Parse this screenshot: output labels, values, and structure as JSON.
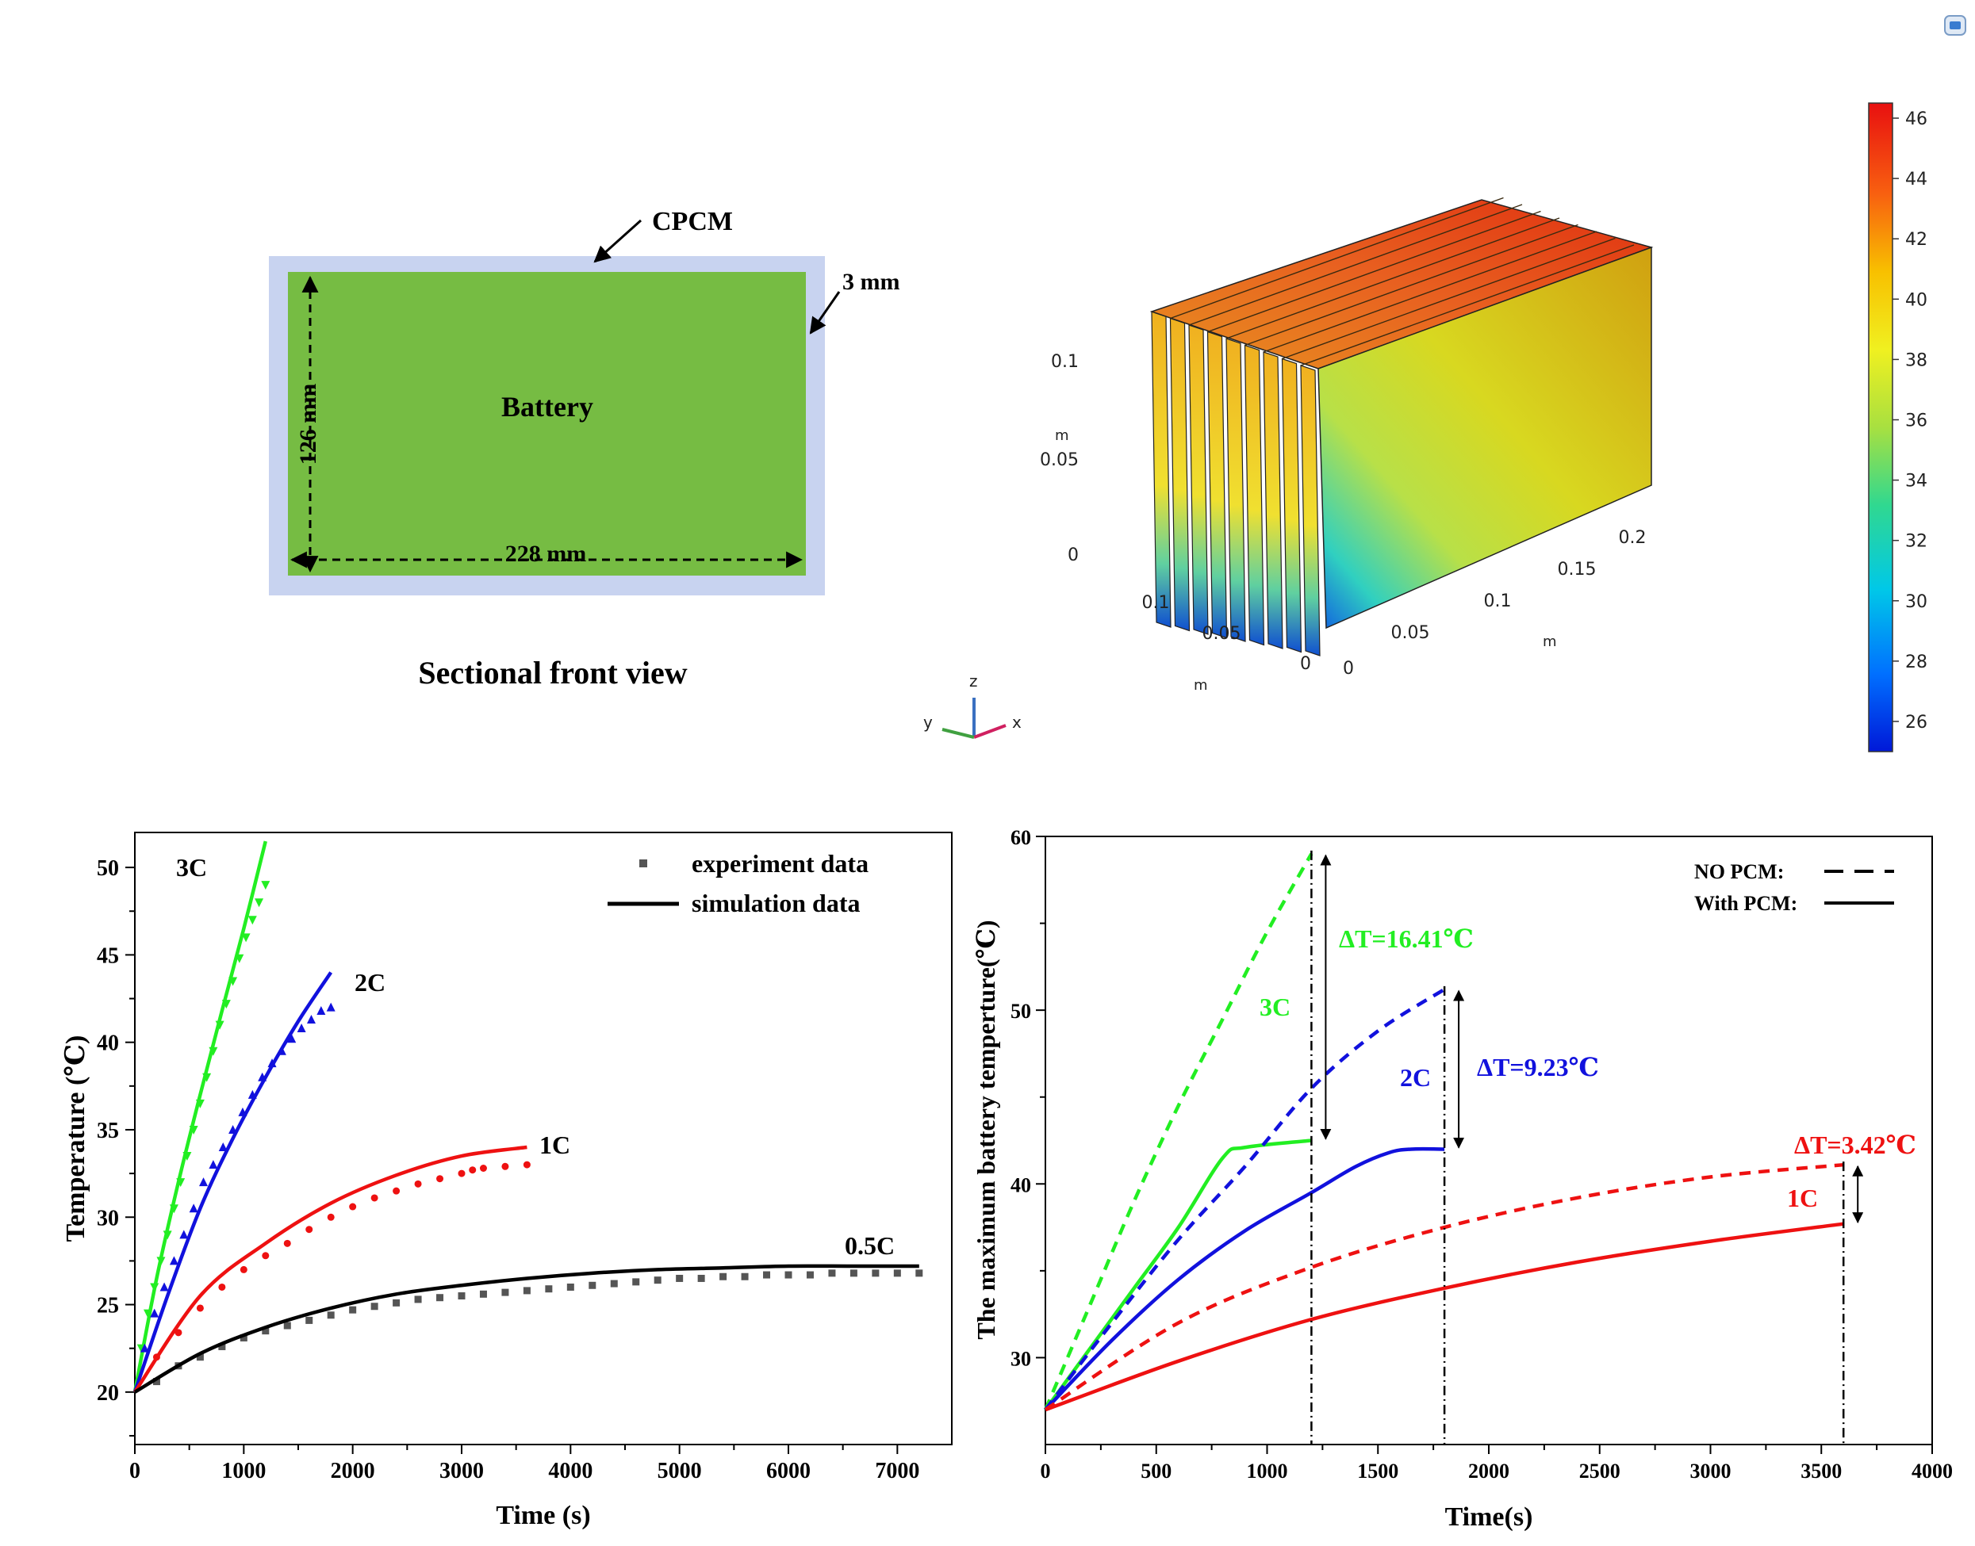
{
  "schematic": {
    "cpcm_label": "CPCM",
    "thickness_label": "3 mm",
    "battery_label": "Battery",
    "height_label": "126 mm",
    "width_label": "228 mm",
    "caption": "Sectional front view"
  },
  "colors": {
    "cpcm": "#c8d3f0",
    "battery": "#76bc43",
    "green": "#22ee22",
    "blue": "#1111dd",
    "red": "#ee1111",
    "black": "#000000",
    "gray": "#555555"
  },
  "model3d": {
    "z_ticks": [
      "0.1",
      "0.05",
      "0"
    ],
    "z_unit": "m",
    "y_ticks": [
      "0.1",
      "0.05",
      "0"
    ],
    "y_unit": "m",
    "x_ticks": [
      "0",
      "0.05",
      "0.1",
      "0.15",
      "0.2"
    ],
    "x_unit": "m",
    "triad": {
      "z": "z",
      "y": "y",
      "x": "x"
    },
    "colorbar_ticks": [
      "46",
      "44",
      "42",
      "40",
      "38",
      "36",
      "34",
      "32",
      "30",
      "28",
      "26"
    ],
    "colorbar_range": [
      25,
      46.5
    ]
  },
  "chart_data": [
    {
      "type": "line",
      "xlabel": "Time (s)",
      "ylabel": "Temperature (℃)",
      "xlim": [
        0,
        7500
      ],
      "ylim": [
        17,
        52
      ],
      "xticks": [
        "0",
        "1000",
        "2000",
        "3000",
        "4000",
        "5000",
        "6000",
        "7000"
      ],
      "yticks": [
        "20",
        "25",
        "30",
        "35",
        "40",
        "45",
        "50"
      ],
      "legend": {
        "experiment": "experiment data",
        "simulation": "simulation data"
      },
      "series": [
        {
          "name": "3C",
          "color": "green",
          "marker": "triangle-down",
          "simulation": [
            [
              0,
              20
            ],
            [
              200,
              26.5
            ],
            [
              400,
              32
            ],
            [
              600,
              37
            ],
            [
              800,
              41.8
            ],
            [
              1000,
              46.5
            ],
            [
              1200,
              51.5
            ]
          ],
          "experiment": [
            [
              60,
              22.5
            ],
            [
              120,
              24.5
            ],
            [
              180,
              26
            ],
            [
              240,
              27.5
            ],
            [
              300,
              29
            ],
            [
              360,
              30.5
            ],
            [
              420,
              32
            ],
            [
              480,
              33.5
            ],
            [
              540,
              35
            ],
            [
              600,
              36.5
            ],
            [
              660,
              38
            ],
            [
              720,
              39.5
            ],
            [
              780,
              41
            ],
            [
              840,
              42.2
            ],
            [
              900,
              43.5
            ],
            [
              960,
              44.8
            ],
            [
              1020,
              46
            ],
            [
              1080,
              47
            ],
            [
              1140,
              48
            ],
            [
              1200,
              49
            ]
          ]
        },
        {
          "name": "2C",
          "color": "blue",
          "marker": "triangle-up",
          "simulation": [
            [
              0,
              20
            ],
            [
              300,
              25.5
            ],
            [
              600,
              30.5
            ],
            [
              900,
              34.5
            ],
            [
              1200,
              38
            ],
            [
              1500,
              41.2
            ],
            [
              1800,
              44
            ]
          ],
          "experiment": [
            [
              90,
              22.5
            ],
            [
              180,
              24.5
            ],
            [
              270,
              26
            ],
            [
              360,
              27.5
            ],
            [
              450,
              29
            ],
            [
              540,
              30.5
            ],
            [
              630,
              32
            ],
            [
              720,
              33
            ],
            [
              810,
              34
            ],
            [
              900,
              35
            ],
            [
              990,
              36
            ],
            [
              1080,
              37
            ],
            [
              1170,
              38
            ],
            [
              1260,
              38.8
            ],
            [
              1350,
              39.5
            ],
            [
              1440,
              40.2
            ],
            [
              1530,
              40.8
            ],
            [
              1620,
              41.3
            ],
            [
              1710,
              41.8
            ],
            [
              1800,
              42
            ]
          ]
        },
        {
          "name": "1C",
          "color": "red",
          "marker": "circle",
          "simulation": [
            [
              0,
              20
            ],
            [
              600,
              25.5
            ],
            [
              1200,
              28.5
            ],
            [
              1800,
              30.8
            ],
            [
              2400,
              32.4
            ],
            [
              3000,
              33.5
            ],
            [
              3600,
              34
            ]
          ],
          "experiment": [
            [
              200,
              22
            ],
            [
              400,
              23.4
            ],
            [
              600,
              24.8
            ],
            [
              800,
              26
            ],
            [
              1000,
              27
            ],
            [
              1200,
              27.8
            ],
            [
              1400,
              28.5
            ],
            [
              1600,
              29.3
            ],
            [
              1800,
              30
            ],
            [
              2000,
              30.6
            ],
            [
              2200,
              31.1
            ],
            [
              2400,
              31.5
            ],
            [
              2600,
              31.9
            ],
            [
              2800,
              32.2
            ],
            [
              3000,
              32.5
            ],
            [
              3100,
              32.7
            ],
            [
              3200,
              32.8
            ],
            [
              3400,
              32.9
            ],
            [
              3600,
              33
            ]
          ]
        },
        {
          "name": "0.5C",
          "color": "black",
          "marker": "square",
          "simulation": [
            [
              0,
              20
            ],
            [
              600,
              22.2
            ],
            [
              1200,
              23.7
            ],
            [
              1800,
              24.8
            ],
            [
              2400,
              25.6
            ],
            [
              3000,
              26.1
            ],
            [
              3600,
              26.5
            ],
            [
              4200,
              26.8
            ],
            [
              4800,
              27
            ],
            [
              5400,
              27.1
            ],
            [
              6000,
              27.2
            ],
            [
              6600,
              27.2
            ],
            [
              7200,
              27.2
            ]
          ],
          "experiment": [
            [
              200,
              20.6
            ],
            [
              400,
              21.5
            ],
            [
              600,
              22
            ],
            [
              800,
              22.6
            ],
            [
              1000,
              23.1
            ],
            [
              1200,
              23.5
            ],
            [
              1400,
              23.8
            ],
            [
              1600,
              24.1
            ],
            [
              1800,
              24.4
            ],
            [
              2000,
              24.7
            ],
            [
              2200,
              24.9
            ],
            [
              2400,
              25.1
            ],
            [
              2600,
              25.3
            ],
            [
              2800,
              25.4
            ],
            [
              3000,
              25.5
            ],
            [
              3200,
              25.6
            ],
            [
              3400,
              25.7
            ],
            [
              3600,
              25.8
            ],
            [
              3800,
              25.9
            ],
            [
              4000,
              26
            ],
            [
              4200,
              26.1
            ],
            [
              4400,
              26.2
            ],
            [
              4600,
              26.3
            ],
            [
              4800,
              26.4
            ],
            [
              5000,
              26.5
            ],
            [
              5200,
              26.5
            ],
            [
              5400,
              26.6
            ],
            [
              5600,
              26.6
            ],
            [
              5800,
              26.7
            ],
            [
              6000,
              26.7
            ],
            [
              6200,
              26.7
            ],
            [
              6400,
              26.8
            ],
            [
              6600,
              26.8
            ],
            [
              6800,
              26.8
            ],
            [
              7000,
              26.8
            ],
            [
              7200,
              26.8
            ]
          ]
        }
      ]
    },
    {
      "type": "line",
      "xlabel": "Time(s)",
      "ylabel": "The maximum battery temperture(℃)",
      "xlim": [
        0,
        4000
      ],
      "ylim": [
        25,
        60
      ],
      "xticks": [
        "0",
        "500",
        "1000",
        "1500",
        "2000",
        "2500",
        "3000",
        "3500",
        "4000"
      ],
      "yticks": [
        "30",
        "40",
        "50",
        "60"
      ],
      "legend": {
        "no_pcm": "NO PCM:",
        "with_pcm": "With PCM:"
      },
      "series": [
        {
          "name": "3C",
          "color": "green",
          "end_time": 1200,
          "no_pcm": [
            [
              0,
              27
            ],
            [
              200,
              33
            ],
            [
              400,
              39
            ],
            [
              600,
              44.5
            ],
            [
              800,
              49.5
            ],
            [
              1000,
              54.5
            ],
            [
              1200,
              59
            ]
          ],
          "with_pcm": [
            [
              0,
              27
            ],
            [
              200,
              30.5
            ],
            [
              400,
              34
            ],
            [
              600,
              37.5
            ],
            [
              800,
              41.5
            ],
            [
              900,
              42.1
            ],
            [
              1200,
              42.5
            ]
          ],
          "delta_label": "ΔT=16.41℃"
        },
        {
          "name": "2C",
          "color": "blue",
          "end_time": 1800,
          "no_pcm": [
            [
              0,
              27
            ],
            [
              300,
              32
            ],
            [
              600,
              36.8
            ],
            [
              900,
              41
            ],
            [
              1200,
              45.5
            ],
            [
              1500,
              48.8
            ],
            [
              1800,
              51.2
            ]
          ],
          "with_pcm": [
            [
              0,
              27
            ],
            [
              300,
              31
            ],
            [
              600,
              34.5
            ],
            [
              900,
              37.3
            ],
            [
              1200,
              39.5
            ],
            [
              1400,
              41
            ],
            [
              1550,
              41.8
            ],
            [
              1650,
              42
            ],
            [
              1800,
              42
            ]
          ],
          "delta_label": "ΔT=9.23℃"
        },
        {
          "name": "1C",
          "color": "red",
          "end_time": 3600,
          "no_pcm": [
            [
              0,
              27
            ],
            [
              600,
              32
            ],
            [
              1200,
              35.2
            ],
            [
              1800,
              37.5
            ],
            [
              2400,
              39.2
            ],
            [
              3000,
              40.4
            ],
            [
              3600,
              41.1
            ]
          ],
          "with_pcm": [
            [
              0,
              27
            ],
            [
              600,
              29.8
            ],
            [
              1200,
              32.2
            ],
            [
              1800,
              34
            ],
            [
              2400,
              35.5
            ],
            [
              3000,
              36.7
            ],
            [
              3600,
              37.7
            ]
          ],
          "delta_label": "ΔT=3.42℃"
        }
      ]
    }
  ]
}
